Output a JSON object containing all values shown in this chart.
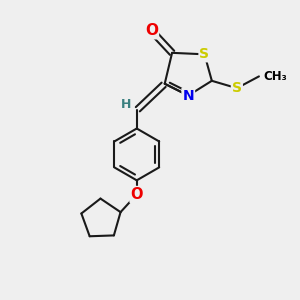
{
  "bg_color": "#efefef",
  "atom_colors": {
    "C": "#000000",
    "N": "#0000ee",
    "O": "#ee0000",
    "S": "#cccc00",
    "H": "#3a8080"
  },
  "bond_color": "#1a1a1a",
  "figsize": [
    3.0,
    3.0
  ],
  "dpi": 100,
  "lw": 1.5,
  "fs": 9.5
}
